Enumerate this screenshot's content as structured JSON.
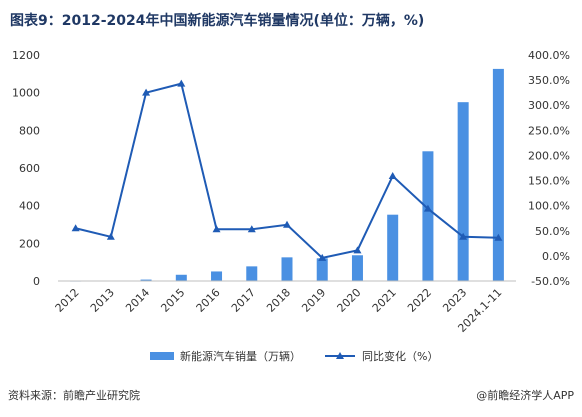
{
  "title": "图表9：2012-2024年中国新能源汽车销量情况(单位：万辆，%)",
  "footer": {
    "source": "资料来源：前瞻产业研究院",
    "brand": "@前瞻经济学人APP"
  },
  "colors": {
    "bar": "#4a90e2",
    "line": "#1f5bb5",
    "title": "#1f3864"
  },
  "chart_data": {
    "type": "bar+line",
    "categories": [
      "2012",
      "2013",
      "2014",
      "2015",
      "2016",
      "2017",
      "2018",
      "2019",
      "2020",
      "2021",
      "2022",
      "2023",
      "2024.1-11"
    ],
    "series": [
      {
        "name": "新能源汽车销量（万辆）",
        "type": "bar",
        "axis": "left",
        "values": [
          1.3,
          1.8,
          7.5,
          33.1,
          50.7,
          77.7,
          125.6,
          120.6,
          136.7,
          352.1,
          688.7,
          949.5,
          1126.2
        ]
      },
      {
        "name": "同比变化（%）",
        "type": "line",
        "axis": "right",
        "values": [
          55,
          38,
          325,
          343,
          53,
          53,
          62,
          -4,
          11,
          159,
          94,
          38,
          36
        ]
      }
    ],
    "y_left": {
      "min": 0,
      "max": 1200,
      "ticks": [
        "0",
        "200",
        "400",
        "600",
        "800",
        "1000",
        "1200"
      ]
    },
    "y_right": {
      "min": -50,
      "max": 400,
      "ticks": [
        "-50.0%",
        "0.0%",
        "50.0%",
        "100.0%",
        "150.0%",
        "200.0%",
        "250.0%",
        "300.0%",
        "350.0%",
        "400.0%"
      ]
    },
    "grid": false,
    "legend_position": "bottom"
  }
}
